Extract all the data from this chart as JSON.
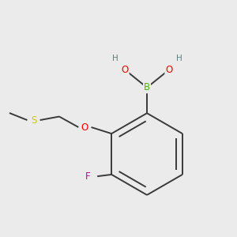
{
  "background_color": "#ebebeb",
  "figsize": [
    3.0,
    3.0
  ],
  "dpi": 100,
  "atom_colors": {
    "C": "#3a3a3a",
    "H": "#5a8080",
    "O": "#ee0000",
    "B": "#44bb00",
    "F": "#cc00aa",
    "S": "#cccc00"
  },
  "bond_color": "#3a3a3a",
  "bond_width": 1.4,
  "font_size_atoms": 8.5,
  "font_size_H": 7.5
}
